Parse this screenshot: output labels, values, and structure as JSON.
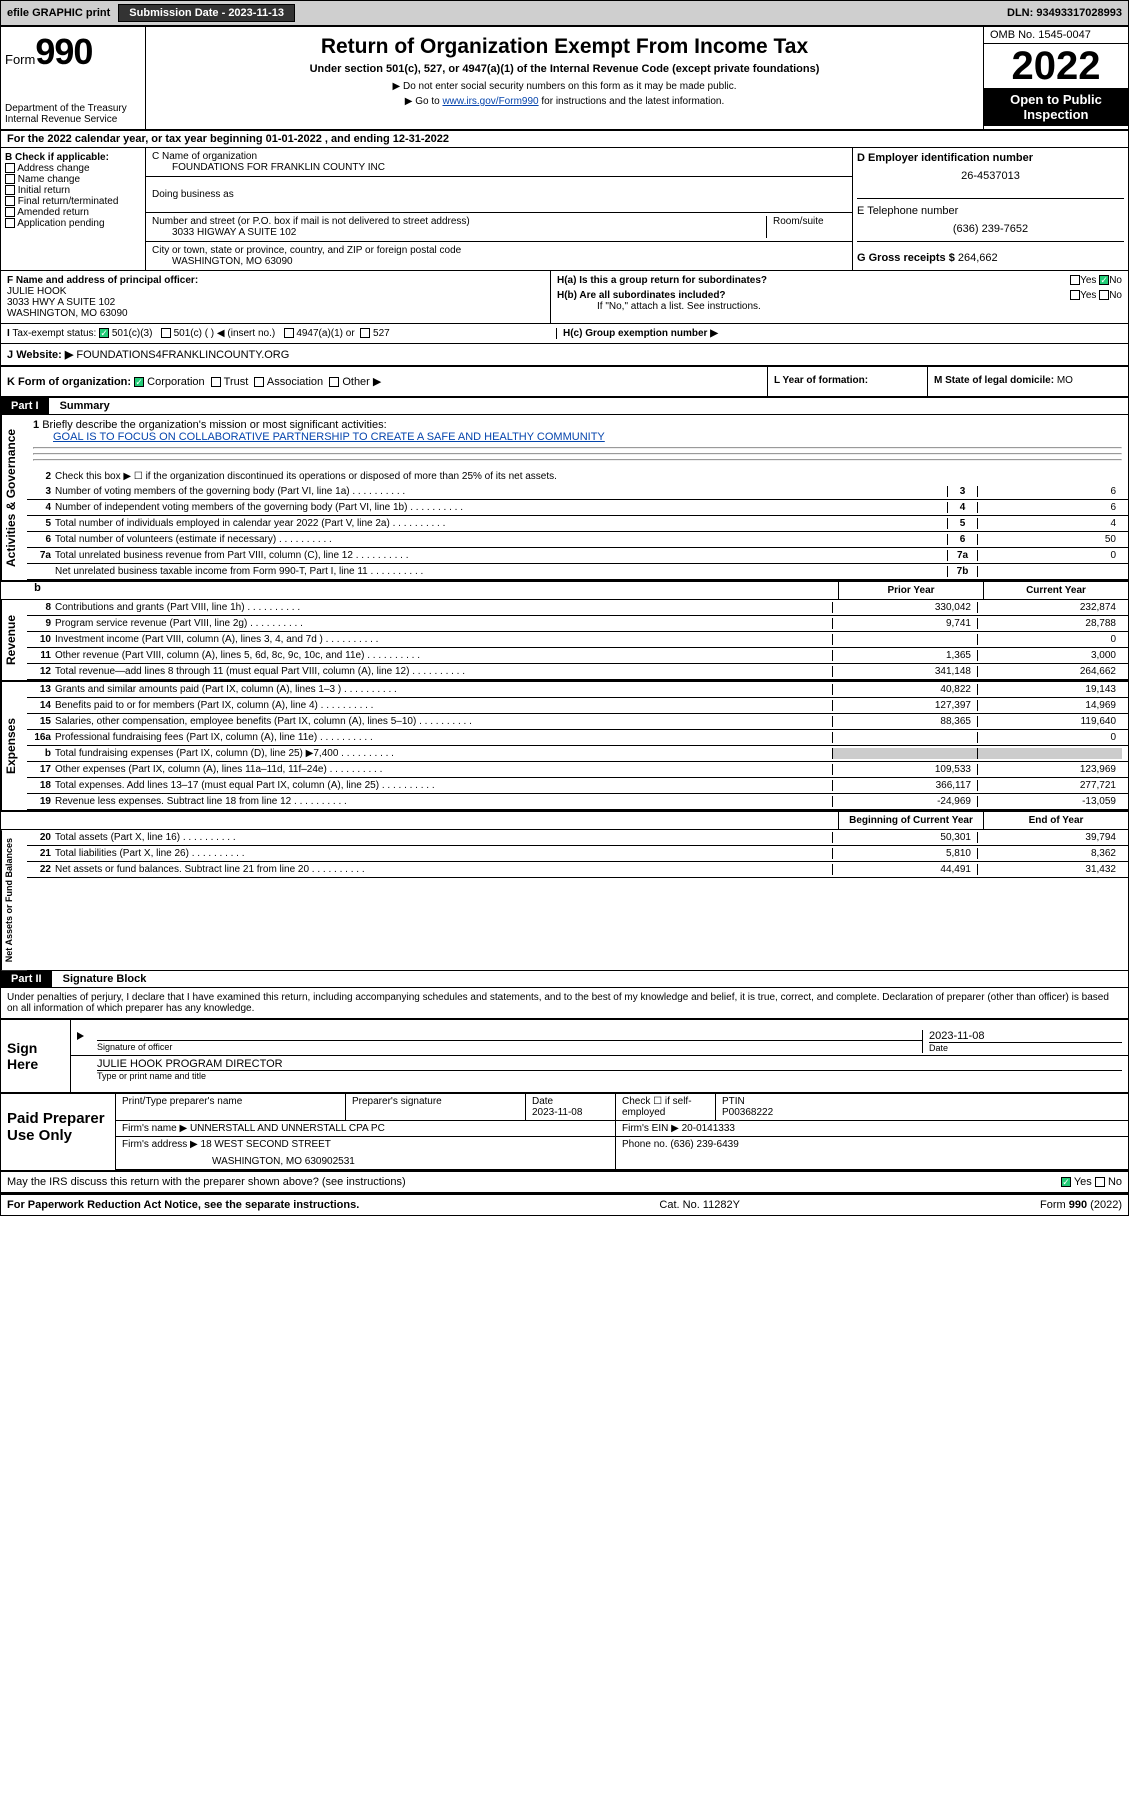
{
  "topbar": {
    "efile": "efile GRAPHIC print",
    "sub_label": "Submission Date - 2023-11-13",
    "dln": "DLN: 93493317028993"
  },
  "header": {
    "form_word": "Form",
    "form_num": "990",
    "dept": "Department of the Treasury",
    "irs": "Internal Revenue Service",
    "title": "Return of Organization Exempt From Income Tax",
    "subtitle": "Under section 501(c), 527, or 4947(a)(1) of the Internal Revenue Code (except private foundations)",
    "note1": "▶ Do not enter social security numbers on this form as it may be made public.",
    "note2_pre": "▶ Go to ",
    "note2_link": "www.irs.gov/Form990",
    "note2_post": " for instructions and the latest information.",
    "omb": "OMB No. 1545-0047",
    "year": "2022",
    "open_pub": "Open to Public Inspection"
  },
  "line_a": "For the 2022 calendar year, or tax year beginning 01-01-2022    , and ending 12-31-2022",
  "b": {
    "label": "B Check if applicable:",
    "items": [
      "Address change",
      "Name change",
      "Initial return",
      "Final return/terminated",
      "Amended return",
      "Application pending"
    ]
  },
  "c": {
    "name_lbl": "C Name of organization",
    "name": "FOUNDATIONS FOR FRANKLIN COUNTY INC",
    "dba_lbl": "Doing business as",
    "street_lbl": "Number and street (or P.O. box if mail is not delivered to street address)",
    "room_lbl": "Room/suite",
    "street": "3033 HIGWAY A SUITE 102",
    "city_lbl": "City or town, state or province, country, and ZIP or foreign postal code",
    "city": "WASHINGTON, MO  63090"
  },
  "d": {
    "lbl": "D Employer identification number",
    "val": "26-4537013"
  },
  "e": {
    "lbl": "E Telephone number",
    "val": "(636) 239-7652"
  },
  "g": {
    "lbl": "G Gross receipts $",
    "val": "264,662"
  },
  "f": {
    "lbl": "F  Name and address of principal officer:",
    "name": "JULIE HOOK",
    "addr1": "3033 HWY A SUITE 102",
    "addr2": "WASHINGTON, MO  63090"
  },
  "h": {
    "ha": "H(a)  Is this a group return for subordinates?",
    "hb": "H(b)  Are all subordinates included?",
    "hb_note": "If \"No,\" attach a list. See instructions.",
    "hc": "H(c)  Group exemption number ▶",
    "yes": "Yes",
    "no": "No"
  },
  "i": {
    "lbl": "Tax-exempt status:",
    "opt1": "501(c)(3)",
    "opt2": "501(c) (  ) ◀ (insert no.)",
    "opt3": "4947(a)(1) or",
    "opt4": "527"
  },
  "j": {
    "lbl": "Website: ▶",
    "val": "FOUNDATIONS4FRANKLINCOUNTY.ORG"
  },
  "k": {
    "lbl": "K Form of organization:",
    "opts": [
      "Corporation",
      "Trust",
      "Association",
      "Other ▶"
    ]
  },
  "l": {
    "lbl": "L Year of formation:"
  },
  "m": {
    "lbl": "M State of legal domicile:",
    "val": "MO"
  },
  "part1": {
    "hdr": "Part I",
    "title": "Summary"
  },
  "mission": {
    "lbl": "Briefly describe the organization's mission or most significant activities:",
    "text": "GOAL IS TO FOCUS ON COLLABORATIVE PARTNERSHIP TO CREATE A SAFE AND HEALTHY COMMUNITY"
  },
  "line2": "Check this box ▶ ☐  if the organization discontinued its operations or disposed of more than 25% of its net assets.",
  "summary": [
    {
      "n": "3",
      "t": "Number of voting members of the governing body (Part VI, line 1a)",
      "c": "3",
      "v": "6"
    },
    {
      "n": "4",
      "t": "Number of independent voting members of the governing body (Part VI, line 1b)",
      "c": "4",
      "v": "6"
    },
    {
      "n": "5",
      "t": "Total number of individuals employed in calendar year 2022 (Part V, line 2a)",
      "c": "5",
      "v": "4"
    },
    {
      "n": "6",
      "t": "Total number of volunteers (estimate if necessary)",
      "c": "6",
      "v": "50"
    },
    {
      "n": "7a",
      "t": "Total unrelated business revenue from Part VIII, column (C), line 12",
      "c": "7a",
      "v": "0"
    },
    {
      "n": "",
      "t": "Net unrelated business taxable income from Form 990-T, Part I, line 11",
      "c": "7b",
      "v": ""
    }
  ],
  "prior_hdr": "Prior Year",
  "curr_hdr": "Current Year",
  "revenue": [
    {
      "n": "8",
      "t": "Contributions and grants (Part VIII, line 1h)",
      "p": "330,042",
      "c": "232,874"
    },
    {
      "n": "9",
      "t": "Program service revenue (Part VIII, line 2g)",
      "p": "9,741",
      "c": "28,788"
    },
    {
      "n": "10",
      "t": "Investment income (Part VIII, column (A), lines 3, 4, and 7d )",
      "p": "",
      "c": "0"
    },
    {
      "n": "11",
      "t": "Other revenue (Part VIII, column (A), lines 5, 6d, 8c, 9c, 10c, and 11e)",
      "p": "1,365",
      "c": "3,000"
    },
    {
      "n": "12",
      "t": "Total revenue—add lines 8 through 11 (must equal Part VIII, column (A), line 12)",
      "p": "341,148",
      "c": "264,662"
    }
  ],
  "expenses": [
    {
      "n": "13",
      "t": "Grants and similar amounts paid (Part IX, column (A), lines 1–3 )",
      "p": "40,822",
      "c": "19,143"
    },
    {
      "n": "14",
      "t": "Benefits paid to or for members (Part IX, column (A), line 4)",
      "p": "127,397",
      "c": "14,969"
    },
    {
      "n": "15",
      "t": "Salaries, other compensation, employee benefits (Part IX, column (A), lines 5–10)",
      "p": "88,365",
      "c": "119,640"
    },
    {
      "n": "16a",
      "t": "Professional fundraising fees (Part IX, column (A), line 11e)",
      "p": "",
      "c": "0"
    },
    {
      "n": "b",
      "t": "Total fundraising expenses (Part IX, column (D), line 25) ▶7,400",
      "p": "",
      "c": "",
      "grey": true
    },
    {
      "n": "17",
      "t": "Other expenses (Part IX, column (A), lines 11a–11d, 11f–24e)",
      "p": "109,533",
      "c": "123,969"
    },
    {
      "n": "18",
      "t": "Total expenses. Add lines 13–17 (must equal Part IX, column (A), line 25)",
      "p": "366,117",
      "c": "277,721"
    },
    {
      "n": "19",
      "t": "Revenue less expenses. Subtract line 18 from line 12",
      "p": "-24,969",
      "c": "-13,059"
    }
  ],
  "begin_hdr": "Beginning of Current Year",
  "end_hdr": "End of Year",
  "netassets": [
    {
      "n": "20",
      "t": "Total assets (Part X, line 16)",
      "p": "50,301",
      "c": "39,794"
    },
    {
      "n": "21",
      "t": "Total liabilities (Part X, line 26)",
      "p": "5,810",
      "c": "8,362"
    },
    {
      "n": "22",
      "t": "Net assets or fund balances. Subtract line 21 from line 20",
      "p": "44,491",
      "c": "31,432"
    }
  ],
  "vtabs": {
    "act": "Activities & Governance",
    "rev": "Revenue",
    "exp": "Expenses",
    "net": "Net Assets or Fund Balances"
  },
  "part2": {
    "hdr": "Part II",
    "title": "Signature Block"
  },
  "penalty": "Under penalties of perjury, I declare that I have examined this return, including accompanying schedules and statements, and to the best of my knowledge and belief, it is true, correct, and complete. Declaration of preparer (other than officer) is based on all information of which preparer has any knowledge.",
  "sign": {
    "here": "Sign Here",
    "sig_lbl": "Signature of officer",
    "date_lbl": "Date",
    "date": "2023-11-08",
    "name": "JULIE HOOK  PROGRAM DIRECTOR",
    "name_lbl": "Type or print name and title"
  },
  "prep": {
    "lbl": "Paid Preparer Use Only",
    "h1": "Print/Type preparer's name",
    "h2": "Preparer's signature",
    "h3": "Date",
    "date": "2023-11-08",
    "h4": "Check ☐ if self-employed",
    "h5": "PTIN",
    "ptin": "P00368222",
    "firm_lbl": "Firm's name   ▶",
    "firm": "UNNERSTALL AND UNNERSTALL CPA PC",
    "ein_lbl": "Firm's EIN ▶",
    "ein": "20-0141333",
    "addr_lbl": "Firm's address ▶",
    "addr": "18 WEST SECOND STREET",
    "city": "WASHINGTON, MO  630902531",
    "phone_lbl": "Phone no.",
    "phone": "(636) 239-6439"
  },
  "may": "May the IRS discuss this return with the preparer shown above? (see instructions)",
  "footer": {
    "left": "For Paperwork Reduction Act Notice, see the separate instructions.",
    "mid": "Cat. No. 11282Y",
    "right": "Form 990 (2022)"
  }
}
